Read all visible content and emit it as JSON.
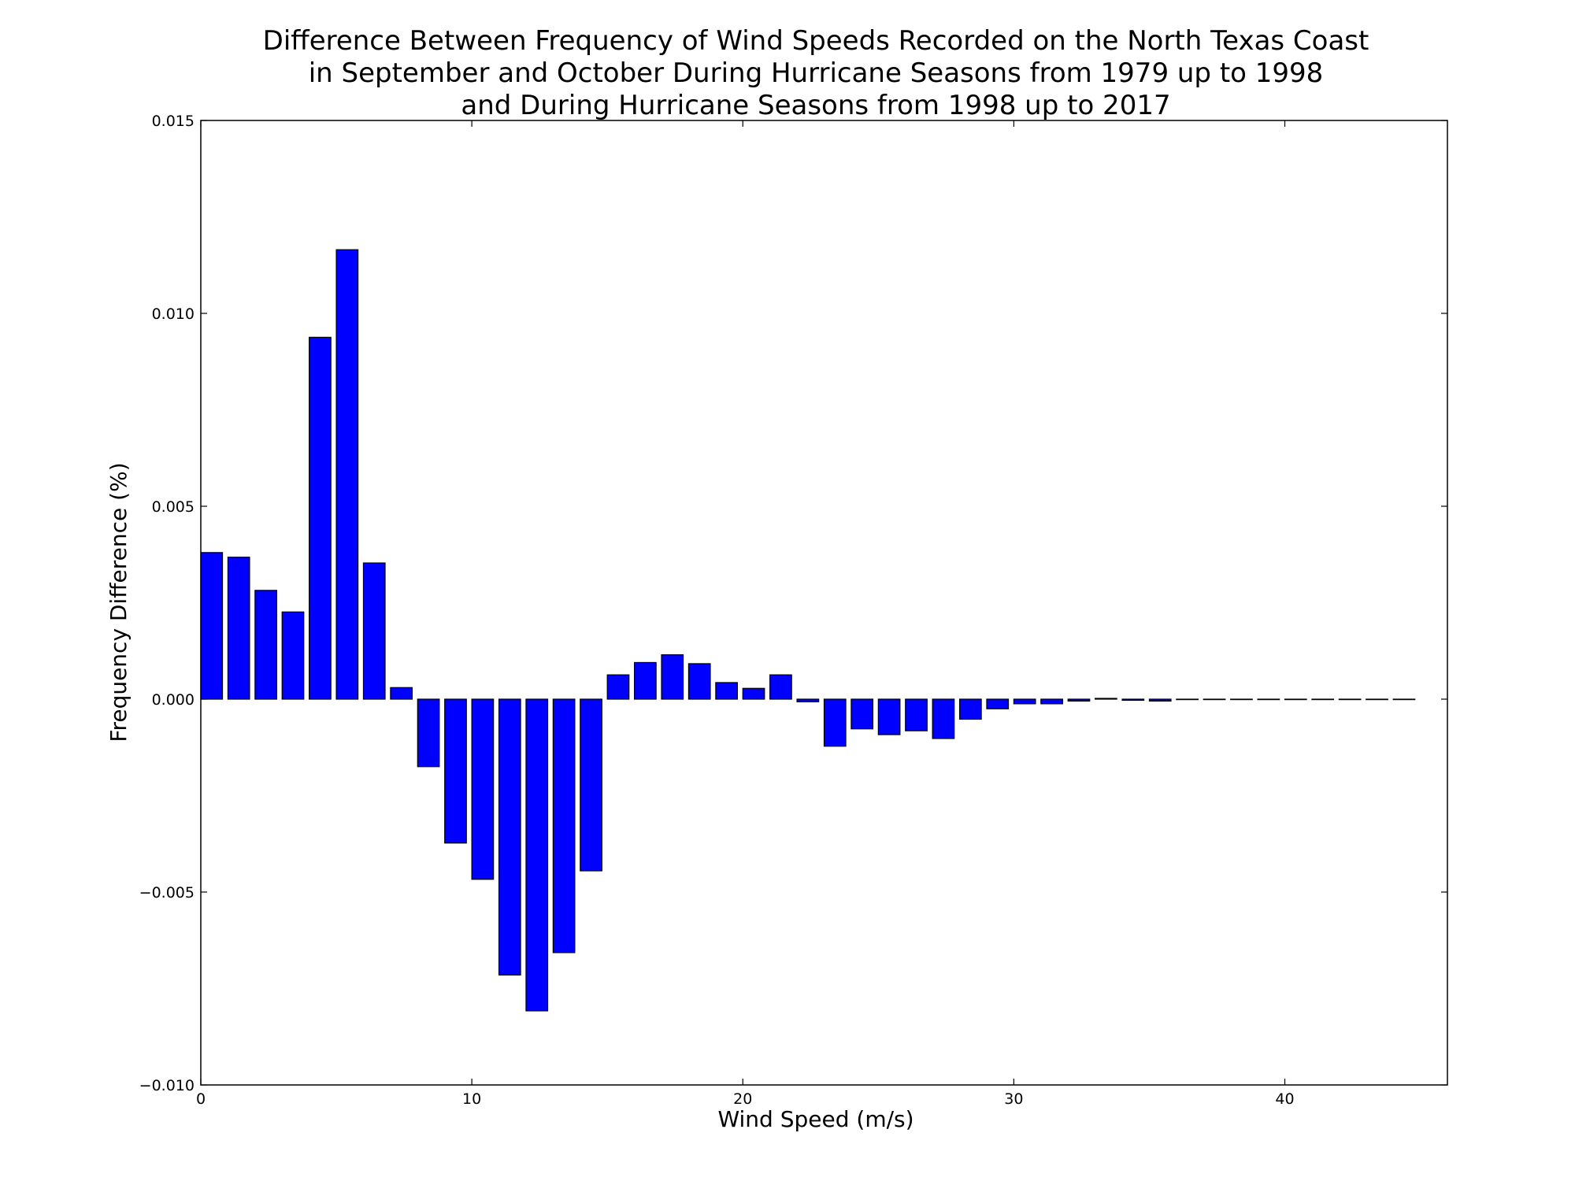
{
  "chart_data": {
    "type": "bar",
    "title": [
      "Difference Between Frequency of Wind Speeds Recorded on the North Texas Coast",
      "in September and October During Hurricane Seasons from 1979 up to 1998",
      "and During Hurricane Seasons from 1998 up to 2017"
    ],
    "xlabel": "Wind Speed (m/s)",
    "ylabel": "Frequency Difference (%)",
    "xlim": [
      0,
      46
    ],
    "ylim": [
      -0.01,
      0.015
    ],
    "bar_width": 0.8,
    "x": [
      0,
      1,
      2,
      3,
      4,
      5,
      6,
      7,
      8,
      9,
      10,
      11,
      12,
      13,
      14,
      15,
      16,
      17,
      18,
      19,
      20,
      21,
      22,
      23,
      24,
      25,
      26,
      27,
      28,
      29,
      30,
      31,
      32,
      33,
      34,
      35,
      36,
      37,
      38,
      39,
      40,
      41,
      42,
      43,
      44
    ],
    "values": [
      0.0038,
      0.00368,
      0.00282,
      0.00226,
      0.00938,
      0.01165,
      0.00353,
      0.0003,
      -0.00175,
      -0.00373,
      -0.00467,
      -0.00715,
      -0.00808,
      -0.00657,
      -0.00445,
      0.00063,
      0.00095,
      0.00115,
      0.00092,
      0.00043,
      0.00028,
      0.00063,
      -7e-05,
      -0.00122,
      -0.00077,
      -0.00092,
      -0.00082,
      -0.00102,
      -0.00052,
      -0.00025,
      -0.00012,
      -0.00012,
      -5e-05,
      2e-05,
      -3e-05,
      -5e-05,
      0,
      0,
      0,
      0,
      0,
      0,
      0,
      0,
      0
    ],
    "bar_color": "#0000ff",
    "x_ticks": [
      0,
      10,
      20,
      30,
      40
    ],
    "x_tick_labels": [
      "0",
      "10",
      "20",
      "30",
      "40"
    ],
    "y_ticks": [
      -0.01,
      -0.005,
      0.0,
      0.005,
      0.01,
      0.015
    ],
    "y_tick_labels": [
      "−0.010",
      "−0.005",
      "0.000",
      "0.005",
      "0.010",
      "0.015"
    ],
    "grid": false,
    "legend": "none"
  }
}
